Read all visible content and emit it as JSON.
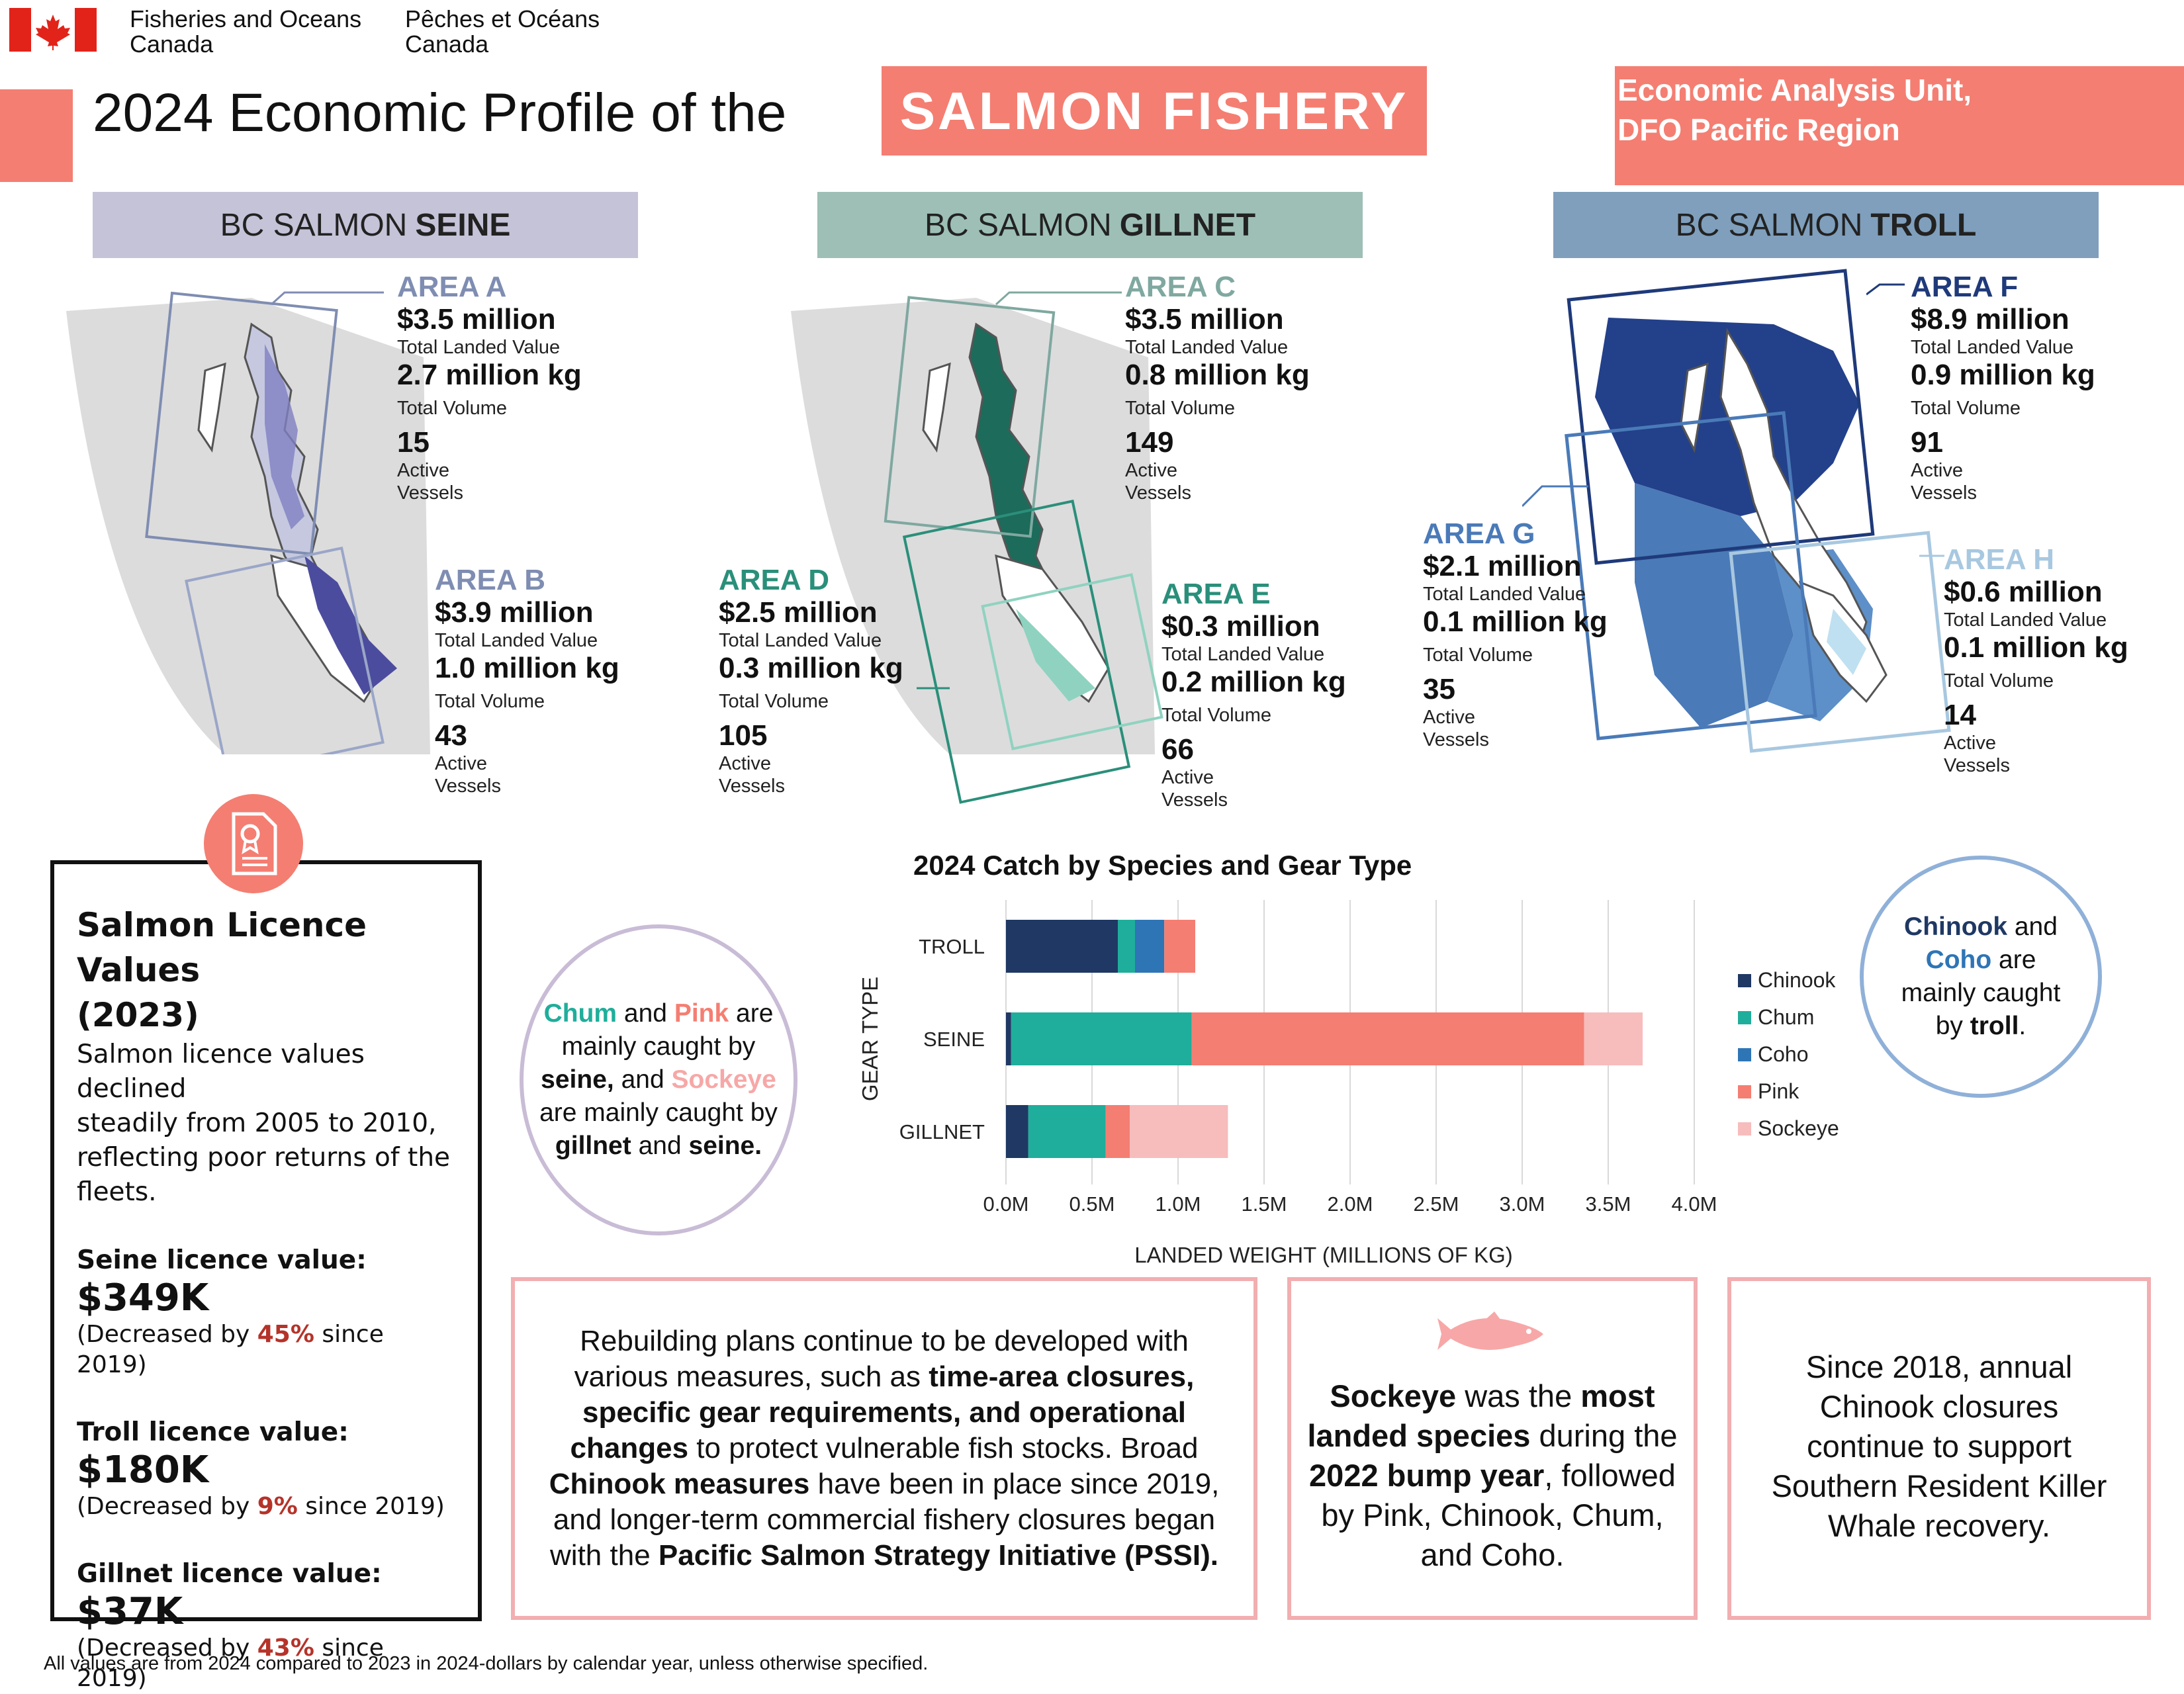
{
  "header": {
    "dept_en_1": "Fisheries and Oceans",
    "dept_en_2": "Canada",
    "dept_fr_1": "Pêches et Océans",
    "dept_fr_2": "Canada",
    "title_prefix": "2024 Economic Profile of the",
    "title_highlight": "SALMON FISHERY",
    "unit_line1": "Economic Analysis Unit,",
    "unit_line2": "DFO Pacific Region"
  },
  "gear_headers": [
    {
      "prefix": "BC SALMON",
      "gear": "SEINE",
      "color": "#c5c3d8"
    },
    {
      "prefix": "BC SALMON",
      "gear": "GILLNET",
      "color": "#9dbfb6"
    },
    {
      "prefix": "BC SALMON",
      "gear": "TROLL",
      "color": "#7f9fbc"
    }
  ],
  "areas": {
    "A": {
      "name": "AREA A",
      "value": "$3.5 million",
      "value_label": "Total Landed Value",
      "volume": "2.7 million kg",
      "volume_label": "Total Volume",
      "vessels": "15",
      "vessels_label_1": "Active",
      "vessels_label_2": "Vessels",
      "color": "#7f8db2"
    },
    "B": {
      "name": "AREA B",
      "value": "$3.9 million",
      "value_label": "Total Landed Value",
      "volume": "1.0 million kg",
      "volume_label": "Total Volume",
      "vessels": "43",
      "vessels_label_1": "Active",
      "vessels_label_2": "Vessels",
      "color": "#7f8db2"
    },
    "C": {
      "name": "AREA C",
      "value": "$3.5 million",
      "value_label": "Total Landed Value",
      "volume": "0.8 million kg",
      "volume_label": "Total Volume",
      "vessels": "149",
      "vessels_label_1": "Active",
      "vessels_label_2": "Vessels",
      "color": "#7fa8a0"
    },
    "D": {
      "name": "AREA D",
      "value": "$2.5 million",
      "value_label": "Total Landed Value",
      "volume": "0.3 million kg",
      "volume_label": "Total Volume",
      "vessels": "105",
      "vessels_label_1": "Active",
      "vessels_label_2": "Vessels",
      "color": "#2a8f7a"
    },
    "E": {
      "name": "AREA E",
      "value": "$0.3 million",
      "value_label": "Total Landed Value",
      "volume": "0.2 million kg",
      "volume_label": "Total Volume",
      "vessels": "66",
      "vessels_label_1": "Active",
      "vessels_label_2": "Vessels",
      "color": "#2a8f7a"
    },
    "F": {
      "name": "AREA F",
      "value": "$8.9 million",
      "value_label": "Total Landed Value",
      "volume": "0.9 million kg",
      "volume_label": "Total Volume",
      "vessels": "91",
      "vessels_label_1": "Active",
      "vessels_label_2": "Vessels",
      "color": "#1f3a7a"
    },
    "G": {
      "name": "AREA G",
      "value": "$2.1 million",
      "value_label": "Total Landed Value",
      "volume": "0.1 million kg",
      "volume_label": "Total Volume",
      "vessels": "35",
      "vessels_label_1": "Active",
      "vessels_label_2": "Vessels",
      "color": "#4a7ab8"
    },
    "H": {
      "name": "AREA H",
      "value": "$0.6 million",
      "value_label": "Total Landed Value",
      "volume": "0.1 million kg",
      "volume_label": "Total Volume",
      "vessels": "14",
      "vessels_label_1": "Active",
      "vessels_label_2": "Vessels",
      "color": "#a8c8e0"
    }
  },
  "licence": {
    "title_1": "Salmon Licence Values",
    "title_2": "(2023)",
    "intro_1": "Salmon licence values declined",
    "intro_2": "steadily from 2005 to 2010,",
    "intro_3": "reflecting poor returns of the",
    "intro_4": "fleets.",
    "items": [
      {
        "label": "Seine licence value:",
        "value": "$349K",
        "note_pre": "(Decreased by ",
        "pct": "45%",
        "note_post": " since 2019)"
      },
      {
        "label": "Troll licence value:",
        "value": "$180K",
        "note_pre": "(Decreased by ",
        "pct": "9%",
        "note_post": " since 2019)"
      },
      {
        "label": "Gillnet licence value:",
        "value": "$37K",
        "note_pre": "(Decreased by ",
        "pct": "43%",
        "note_post": " since 2019)"
      }
    ]
  },
  "circle_left": {
    "chum": "Chum",
    "and1": " and ",
    "pink": "Pink",
    "are1": " are",
    "line2": "mainly caught by",
    "seine": "seine,",
    "and2": " and ",
    "sockeye": "Sockeye",
    "line4": "are mainly caught by",
    "gillnet": "gillnet",
    "and3": " and ",
    "seine2": "seine."
  },
  "circle_right": {
    "chinook": "Chinook",
    "and1": " and",
    "coho": "Coho",
    "are": " are",
    "line3": "mainly caught",
    "by": "by ",
    "troll": "troll",
    "dot": "."
  },
  "chart_data": {
    "type": "bar",
    "orientation": "horizontal",
    "stacked": true,
    "title": "2024 Catch by Species and Gear Type",
    "xlabel": "LANDED WEIGHT (MILLIONS OF KG)",
    "ylabel": "GEAR TYPE",
    "categories": [
      "TROLL",
      "SEINE",
      "GILLNET"
    ],
    "series": [
      {
        "name": "Chinook",
        "color": "#1f3864",
        "values": [
          0.65,
          0.03,
          0.13
        ]
      },
      {
        "name": "Chum",
        "color": "#1fae9b",
        "values": [
          0.1,
          1.05,
          0.45
        ]
      },
      {
        "name": "Coho",
        "color": "#2e75b6",
        "values": [
          0.17,
          0.0,
          0.0
        ]
      },
      {
        "name": "Pink",
        "color": "#f47e72",
        "values": [
          0.18,
          2.28,
          0.14
        ]
      },
      {
        "name": "Sockeye",
        "color": "#f7bcbc",
        "values": [
          0.0,
          0.34,
          0.57
        ]
      }
    ],
    "xlim": [
      0,
      4
    ],
    "xticks": [
      "0.0M",
      "0.5M",
      "1.0M",
      "1.5M",
      "2.0M",
      "2.5M",
      "3.0M",
      "3.5M",
      "4.0M"
    ],
    "grid": true,
    "legend_position": "right"
  },
  "notes": {
    "rebuild": [
      [
        {
          "t": "Rebuilding plans continue to be developed with",
          "b": false
        }
      ],
      [
        {
          "t": "various measures, such as ",
          "b": false
        },
        {
          "t": "time-area closures,",
          "b": true
        }
      ],
      [
        {
          "t": "specific gear requirements, and operational",
          "b": true
        }
      ],
      [
        {
          "t": "changes",
          "b": true
        },
        {
          "t": " to protect vulnerable fish stocks. Broad",
          "b": false
        }
      ],
      [
        {
          "t": "Chinook measures",
          "b": true
        },
        {
          "t": " have been in place since 2019,",
          "b": false
        }
      ],
      [
        {
          "t": "and longer-term commercial fishery closures began",
          "b": false
        }
      ],
      [
        {
          "t": "with the ",
          "b": false
        },
        {
          "t": "Pacific Salmon Strategy Initiative (PSSI).",
          "b": true
        }
      ]
    ],
    "sockeye": [
      [
        {
          "t": "Sockeye",
          "b": true
        },
        {
          "t": " was the ",
          "b": false
        },
        {
          "t": "most",
          "b": true
        }
      ],
      [
        {
          "t": "landed species",
          "b": true
        },
        {
          "t": " during the",
          "b": false
        }
      ],
      [
        {
          "t": "2022 bump year",
          "b": true
        },
        {
          "t": ", followed",
          "b": false
        }
      ],
      [
        {
          "t": "by Pink, Chinook, Chum,",
          "b": false
        }
      ],
      [
        {
          "t": "and Coho.",
          "b": false
        }
      ]
    ],
    "chinook": [
      [
        {
          "t": "Since 2018, annual",
          "b": false
        }
      ],
      [
        {
          "t": "Chinook closures",
          "b": false
        }
      ],
      [
        {
          "t": "continue to support",
          "b": false
        }
      ],
      [
        {
          "t": "Southern Resident Killer",
          "b": false
        }
      ],
      [
        {
          "t": "Whale recovery.",
          "b": false
        }
      ]
    ]
  },
  "footer": "All values are from 2024 compared to 2023 in 2024-dollars by calendar year, unless otherwise specified."
}
